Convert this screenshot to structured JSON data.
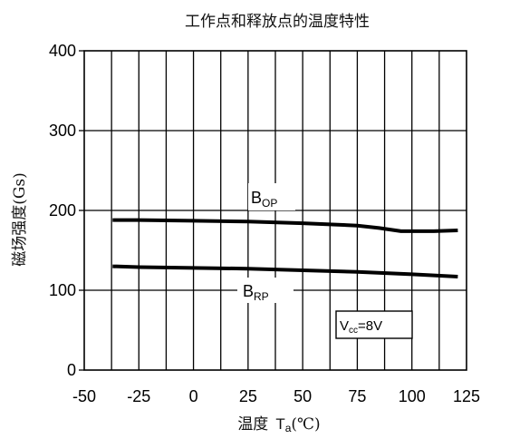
{
  "chart_data": {
    "type": "line",
    "title": "工作点和释放点的温度特性",
    "xlabel": "温度 Tₐ(℃)",
    "xlabel_main": "温度",
    "xlabel_T": "T",
    "xlabel_sub": "a",
    "xlabel_unit": "(℃)",
    "ylabel": "磁场强度(Gs)",
    "xlim": [
      -50,
      125
    ],
    "ylim": [
      0,
      400
    ],
    "x_ticks": [
      -50,
      -25,
      0,
      25,
      50,
      75,
      100,
      125
    ],
    "x_tick_labels": [
      "-50",
      "-25",
      "0",
      "25",
      "50",
      "75",
      "100",
      "125"
    ],
    "x_gridlines": [
      -50,
      -37.5,
      -25,
      -12.5,
      0,
      12.5,
      25,
      37.5,
      50,
      62.5,
      75,
      87.5,
      100,
      112.5,
      125
    ],
    "y_ticks": [
      0,
      100,
      200,
      300,
      400
    ],
    "y_tick_labels": [
      "0",
      "100",
      "200",
      "300",
      "400"
    ],
    "grid": true,
    "series": [
      {
        "name": "B_OP",
        "label_main": "B",
        "label_sub": "OP",
        "x": [
          -37,
          -25,
          0,
          25,
          50,
          75,
          85,
          95,
          100,
          110,
          121
        ],
        "y": [
          188,
          188,
          187,
          186,
          184,
          181,
          178,
          174,
          174,
          174,
          175
        ]
      },
      {
        "name": "B_RP",
        "label_main": "B",
        "label_sub": "RP",
        "x": [
          -37,
          -25,
          0,
          25,
          50,
          75,
          100,
          121
        ],
        "y": [
          130,
          129,
          128,
          127,
          125,
          123,
          120,
          117
        ]
      }
    ],
    "annotations": [
      {
        "id": "vcc",
        "text": "Vcc=8V",
        "main": "V",
        "sub": "cc",
        "rest": "=8V"
      }
    ]
  }
}
